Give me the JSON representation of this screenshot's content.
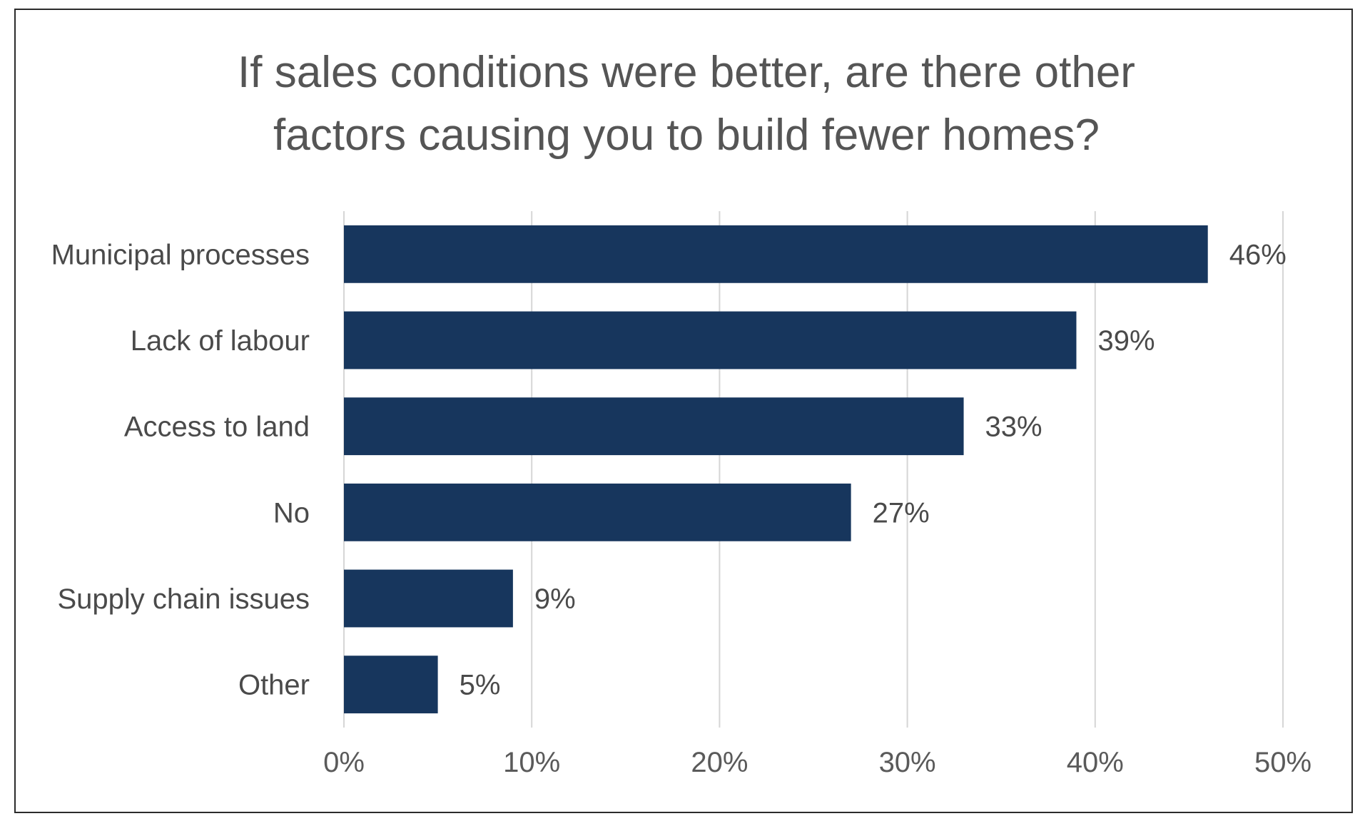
{
  "chart_data": {
    "type": "bar",
    "orientation": "horizontal",
    "title": "If sales conditions were better, are there other factors causing you to build fewer homes?",
    "title_lines": [
      "If sales conditions were better, are there other",
      "factors causing you to build fewer homes?"
    ],
    "categories": [
      "Municipal processes",
      "Lack of labour",
      "Access to land",
      "No",
      "Supply chain issues",
      "Other"
    ],
    "values": [
      46,
      39,
      33,
      27,
      9,
      5
    ],
    "value_labels": [
      "46%",
      "39%",
      "33%",
      "27%",
      "9%",
      "5%"
    ],
    "xlim": [
      0,
      50
    ],
    "x_ticks": [
      0,
      10,
      20,
      30,
      40,
      50
    ],
    "x_tick_labels": [
      "0%",
      "10%",
      "20%",
      "30%",
      "40%",
      "50%"
    ],
    "grid": "vertical",
    "legend": "none",
    "bar_color": "#17365d"
  }
}
